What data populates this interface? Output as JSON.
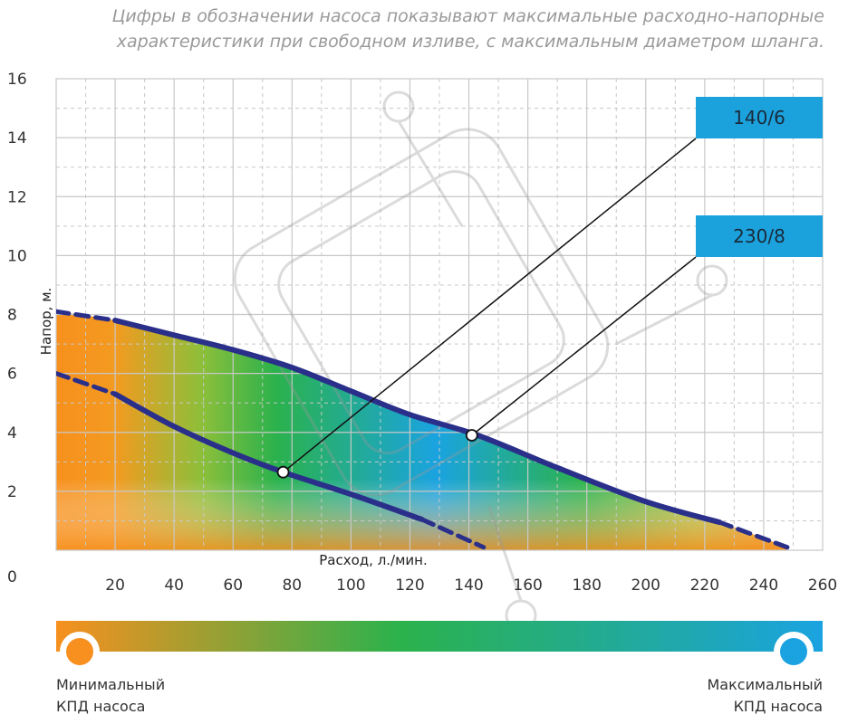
{
  "caption": {
    "line1": "Цифры в обозначении насоса показывают максимальные расходно-напорные",
    "line2": "характеристики при свободном изливе, с максимальным диаметром шланга."
  },
  "chart_data": {
    "type": "line",
    "xlabel": "Расход, л./мин.",
    "ylabel": "Напор, м.",
    "xlim": [
      0,
      260
    ],
    "ylim": [
      0,
      16
    ],
    "x_ticks": [
      20,
      40,
      60,
      80,
      100,
      120,
      140,
      160,
      180,
      200,
      220,
      240,
      260
    ],
    "y_ticks": [
      0,
      2,
      4,
      6,
      8,
      10,
      12,
      14,
      16
    ],
    "grid": true,
    "series": [
      {
        "name": "140/6",
        "x": [
          0,
          20,
          40,
          60,
          77,
          100,
          124,
          145
        ],
        "y": [
          6.0,
          5.3,
          4.2,
          3.3,
          2.65,
          1.9,
          1.05,
          0.1
        ],
        "marker": {
          "x": 77,
          "y": 2.65
        }
      },
      {
        "name": "230/8",
        "x": [
          0,
          20,
          40,
          60,
          80,
          100,
          120,
          143,
          170,
          200,
          225,
          248
        ],
        "y": [
          8.1,
          7.8,
          7.3,
          6.8,
          6.2,
          5.4,
          4.6,
          3.9,
          2.8,
          1.65,
          0.95,
          0.1
        ],
        "marker": {
          "x": 141,
          "y": 3.9
        }
      }
    ],
    "efficiency_scale": {
      "min_label": "Минимальный КПД насоса",
      "max_label": "Максимальный КПД насоса",
      "colors": [
        "#f7901e",
        "#2bb24c",
        "#1aa3e0"
      ]
    }
  },
  "legend": {
    "min_line1": "Минимальный",
    "min_line2": "КПД насоса",
    "max_line1": "Максимальный",
    "max_line2": "КПД насоса"
  }
}
